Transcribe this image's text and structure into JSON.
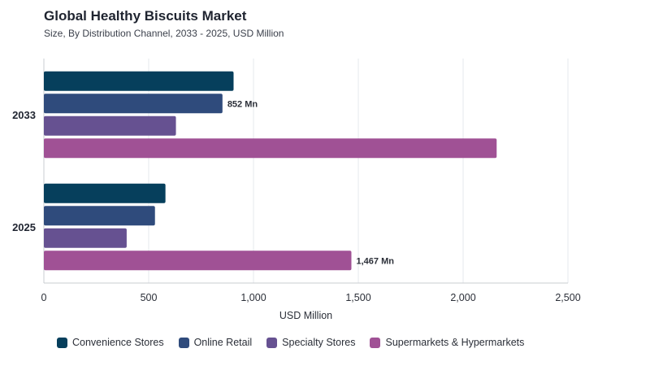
{
  "chart_data": {
    "type": "bar",
    "orientation": "horizontal",
    "title": "Global Healthy Biscuits Market",
    "subtitle": "Size, By Distribution Channel, 2033 - 2025, USD Million",
    "categories": [
      "2033",
      "2025"
    ],
    "series": [
      {
        "name": "Convenience Stores",
        "color": "#063f5c",
        "values": [
          905,
          580
        ]
      },
      {
        "name": "Online Retail",
        "color": "#2f4b7c",
        "values": [
          852,
          530
        ]
      },
      {
        "name": "Specialty Stores",
        "color": "#665191",
        "values": [
          630,
          395
        ]
      },
      {
        "name": "Supermarkets & Hypermarkets",
        "color": "#a05195",
        "values": [
          2160,
          1467
        ]
      }
    ],
    "data_labels": [
      {
        "category": "2033",
        "series": "Online Retail",
        "text": "852 Mn"
      },
      {
        "category": "2025",
        "series": "Supermarkets & Hypermarkets",
        "text": "1,467 Mn"
      }
    ],
    "xlabel": "USD Million",
    "xlim": [
      0,
      2500
    ],
    "xticks": [
      0,
      500,
      1000,
      1500,
      2000,
      2500
    ],
    "xtick_labels": [
      "0",
      "500",
      "1,000",
      "1,500",
      "2,000",
      "2,500"
    ],
    "grid": true,
    "legend_position": "bottom"
  }
}
